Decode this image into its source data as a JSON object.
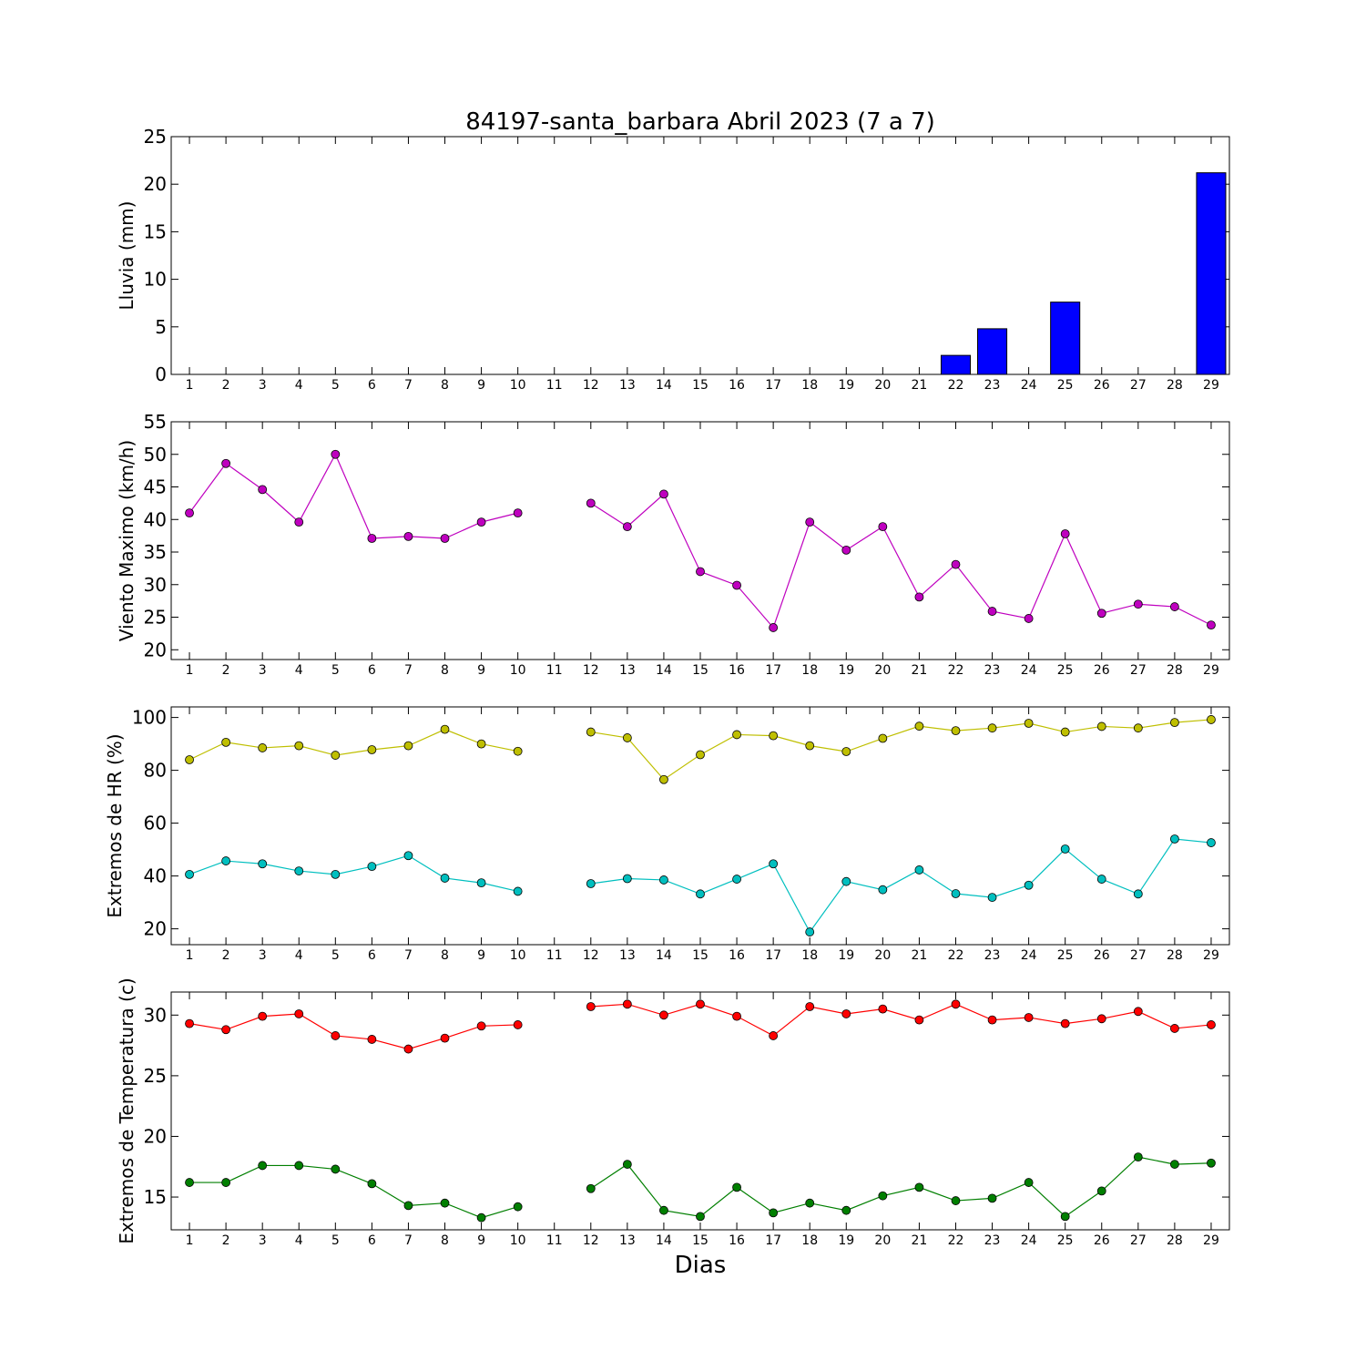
{
  "figure": {
    "title": "84197-santa_barbara Abril 2023  (7 a 7)",
    "xlabel": "Dias"
  },
  "chart_data": [
    {
      "type": "bar",
      "ylabel": "Lluvia (mm)",
      "ylim": [
        0,
        25
      ],
      "yticks": [
        0,
        5,
        10,
        15,
        20,
        25
      ],
      "xticks": [
        1,
        2,
        3,
        4,
        5,
        6,
        7,
        8,
        9,
        10,
        11,
        12,
        13,
        14,
        15,
        16,
        17,
        18,
        19,
        20,
        21,
        22,
        23,
        24,
        25,
        26,
        27,
        28,
        29
      ],
      "x": [
        1,
        2,
        3,
        4,
        5,
        6,
        7,
        8,
        9,
        10,
        12,
        13,
        14,
        15,
        16,
        17,
        18,
        19,
        20,
        21,
        22,
        23,
        24,
        25,
        26,
        27,
        28,
        29
      ],
      "values": [
        0,
        0,
        0,
        0,
        0,
        0,
        0,
        0,
        0,
        0,
        0,
        0,
        0,
        0,
        0,
        0,
        0,
        0,
        0,
        0,
        2.0,
        4.8,
        0,
        7.6,
        0,
        0,
        0,
        21.2
      ],
      "color": "#0000ff"
    },
    {
      "type": "line",
      "ylabel": "Viento Maximo (km/h)",
      "ylim": [
        18.5,
        55
      ],
      "yticks": [
        20,
        25,
        30,
        35,
        40,
        45,
        50,
        55
      ],
      "xticks": [
        1,
        2,
        3,
        4,
        5,
        6,
        7,
        8,
        9,
        10,
        11,
        12,
        13,
        14,
        15,
        16,
        17,
        18,
        19,
        20,
        21,
        22,
        23,
        24,
        25,
        26,
        27,
        28,
        29
      ],
      "x": [
        1,
        2,
        3,
        4,
        5,
        6,
        7,
        8,
        9,
        10,
        11,
        12,
        13,
        14,
        15,
        16,
        17,
        18,
        19,
        20,
        21,
        22,
        23,
        24,
        25,
        26,
        27,
        28,
        29
      ],
      "series": [
        {
          "color": "#bf00bf",
          "values": [
            41,
            48.6,
            44.6,
            39.6,
            50,
            37.1,
            37.4,
            37.1,
            39.6,
            41,
            null,
            42.5,
            38.9,
            43.9,
            32,
            29.9,
            23.4,
            39.6,
            35.3,
            38.9,
            28.1,
            33.1,
            25.9,
            24.8,
            37.8,
            25.6,
            27,
            26.6,
            23.8
          ]
        }
      ]
    },
    {
      "type": "line",
      "ylabel": "Extremos de HR (%)",
      "ylim": [
        14,
        104
      ],
      "yticks": [
        20,
        40,
        60,
        80,
        100
      ],
      "xticks": [
        1,
        2,
        3,
        4,
        5,
        6,
        7,
        8,
        9,
        10,
        11,
        12,
        13,
        14,
        15,
        16,
        17,
        18,
        19,
        20,
        21,
        22,
        23,
        24,
        25,
        26,
        27,
        28,
        29
      ],
      "x": [
        1,
        2,
        3,
        4,
        5,
        6,
        7,
        8,
        9,
        10,
        11,
        12,
        13,
        14,
        15,
        16,
        17,
        18,
        19,
        20,
        21,
        22,
        23,
        24,
        25,
        26,
        27,
        28,
        29
      ],
      "series": [
        {
          "color": "#bfbf00",
          "values": [
            84,
            90.6,
            88.5,
            89.3,
            85.7,
            87.8,
            89.3,
            95.5,
            90,
            87.2,
            null,
            94.5,
            92.3,
            76.5,
            85.9,
            93.5,
            93.1,
            89.3,
            87.1,
            92.1,
            96.7,
            95,
            96,
            97.8,
            94.5,
            96.6,
            96,
            98.1,
            99.2
          ]
        },
        {
          "color": "#00bfbf",
          "values": [
            40.6,
            45.7,
            44.6,
            41.9,
            40.6,
            43.6,
            47.7,
            39.2,
            37.4,
            34.2,
            null,
            37.1,
            39,
            38.5,
            33.2,
            38.8,
            44.6,
            18.8,
            37.9,
            34.8,
            42.3,
            33.3,
            31.9,
            36.5,
            50.2,
            38.8,
            33.2,
            54,
            52.6
          ]
        }
      ]
    },
    {
      "type": "line",
      "ylabel": "Extremos de Temperatura (c)",
      "ylim": [
        12.3,
        31.9
      ],
      "yticks": [
        15,
        20,
        25,
        30
      ],
      "xticks": [
        1,
        2,
        3,
        4,
        5,
        6,
        7,
        8,
        9,
        10,
        11,
        12,
        13,
        14,
        15,
        16,
        17,
        18,
        19,
        20,
        21,
        22,
        23,
        24,
        25,
        26,
        27,
        28,
        29
      ],
      "x": [
        1,
        2,
        3,
        4,
        5,
        6,
        7,
        8,
        9,
        10,
        11,
        12,
        13,
        14,
        15,
        16,
        17,
        18,
        19,
        20,
        21,
        22,
        23,
        24,
        25,
        26,
        27,
        28,
        29
      ],
      "series": [
        {
          "color": "#ff0000",
          "values": [
            29.3,
            28.8,
            29.9,
            30.1,
            28.3,
            28,
            27.2,
            28.1,
            29.1,
            29.2,
            null,
            30.7,
            30.9,
            30,
            30.9,
            29.9,
            28.3,
            30.7,
            30.1,
            30.5,
            29.6,
            30.9,
            29.6,
            29.8,
            29.3,
            29.7,
            30.3,
            28.9,
            29.2
          ]
        },
        {
          "color": "#007f00",
          "values": [
            16.2,
            16.2,
            17.6,
            17.6,
            17.3,
            16.1,
            14.3,
            14.5,
            13.3,
            14.2,
            null,
            15.7,
            17.7,
            13.9,
            13.4,
            15.8,
            13.7,
            14.5,
            13.9,
            15.1,
            15.8,
            14.7,
            14.9,
            16.2,
            13.4,
            15.5,
            18.3,
            17.7,
            17.8
          ]
        }
      ]
    }
  ]
}
